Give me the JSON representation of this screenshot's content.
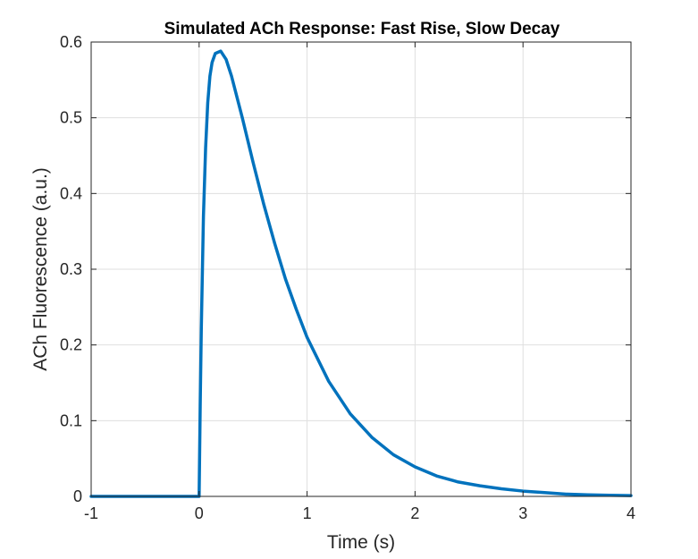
{
  "chart_data": {
    "type": "line",
    "title": "Simulated ACh Response: Fast Rise, Slow Decay",
    "xlabel": "Time (s)",
    "ylabel": "ACh Fluorescence (a.u.)",
    "xlim": [
      -1,
      4
    ],
    "ylim": [
      0,
      0.6
    ],
    "xticks": [
      -1,
      0,
      1,
      2,
      3,
      4
    ],
    "xtick_labels": [
      "-1",
      "0",
      "1",
      "2",
      "3",
      "4"
    ],
    "yticks": [
      0,
      0.1,
      0.2,
      0.3,
      0.4,
      0.5,
      0.6
    ],
    "ytick_labels": [
      "0",
      "0.1",
      "0.2",
      "0.3",
      "0.4",
      "0.5",
      "0.6"
    ],
    "grid": true,
    "legend": "none",
    "series": [
      {
        "color": "#0072BD",
        "x": [
          -1,
          -0.5,
          0,
          0.01,
          0.02,
          0.04,
          0.06,
          0.08,
          0.1,
          0.12,
          0.15,
          0.2,
          0.25,
          0.3,
          0.4,
          0.5,
          0.6,
          0.7,
          0.8,
          0.9,
          1.0,
          1.2,
          1.4,
          1.6,
          1.8,
          2.0,
          2.2,
          2.4,
          2.6,
          2.8,
          3.0,
          3.2,
          3.4,
          3.6,
          3.8,
          4.0
        ],
        "y": [
          0,
          0,
          0,
          0.12,
          0.22,
          0.37,
          0.46,
          0.52,
          0.555,
          0.573,
          0.585,
          0.588,
          0.577,
          0.555,
          0.5,
          0.441,
          0.385,
          0.334,
          0.287,
          0.247,
          0.21,
          0.152,
          0.109,
          0.078,
          0.055,
          0.039,
          0.027,
          0.019,
          0.014,
          0.01,
          0.007,
          0.005,
          0.003,
          0.002,
          0.0015,
          0.001
        ]
      }
    ]
  }
}
